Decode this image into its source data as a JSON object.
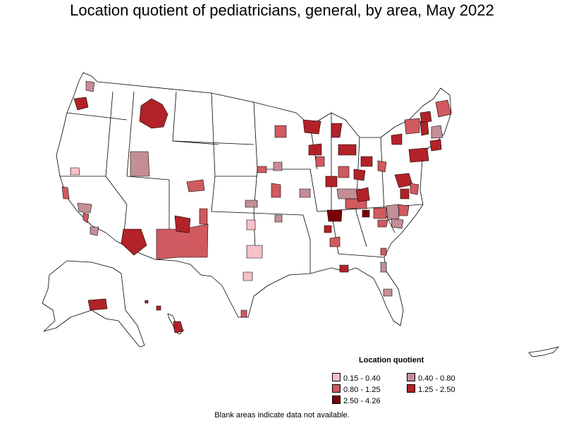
{
  "title": "Location quotient of pediatricians, general, by area, May 2022",
  "legend": {
    "title": "Location quotient",
    "items": [
      {
        "label": "0.15 - 0.40",
        "color": "#f8c0c8"
      },
      {
        "label": "0.40 - 0.80",
        "color": "#c48e96"
      },
      {
        "label": "0.80 - 1.25",
        "color": "#d05a5f"
      },
      {
        "label": "1.25 - 2.50",
        "color": "#b22228"
      },
      {
        "label": "2.50 - 4.26",
        "color": "#7a0008"
      }
    ]
  },
  "note": "Blank areas indicate data not available."
}
